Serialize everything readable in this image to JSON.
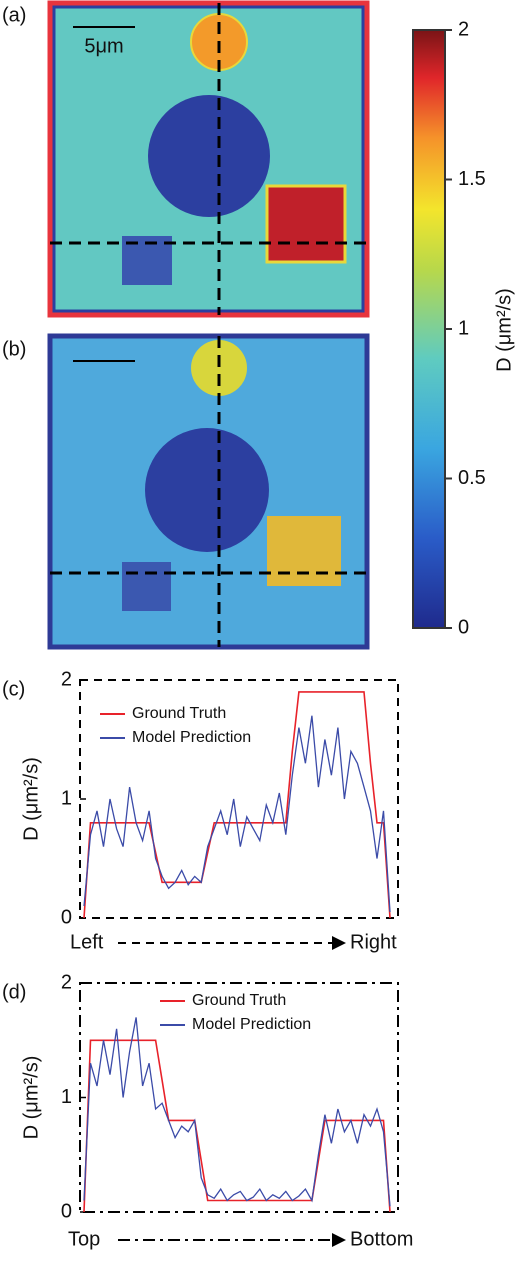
{
  "images": [
    {
      "panel": "(a)",
      "scale_bar": "5μm"
    },
    {
      "panel": "(b)"
    }
  ],
  "chart_data": [
    {
      "type": "colorbar",
      "label": "D (μm²/s)",
      "ylim": [
        0,
        2
      ],
      "yticks": [
        0,
        0.5,
        1,
        1.5,
        2
      ]
    },
    {
      "type": "line",
      "panel": "(c)",
      "ylabel": "D (μm²/s)",
      "x_start": "Left",
      "x_end": "Right",
      "ylim": [
        0,
        2
      ],
      "yticks": [
        0,
        1,
        2
      ],
      "series": [
        {
          "name": "Ground Truth",
          "color": "#e8222a",
          "values": [
            0,
            0.8,
            0.8,
            0.8,
            0.8,
            0.8,
            0.8,
            0.8,
            0.8,
            0.8,
            0.8,
            0.55,
            0.3,
            0.3,
            0.3,
            0.3,
            0.3,
            0.3,
            0.3,
            0.55,
            0.8,
            0.8,
            0.8,
            0.8,
            0.8,
            0.8,
            0.8,
            0.8,
            0.8,
            0.8,
            0.8,
            0.8,
            1.4,
            1.9,
            1.9,
            1.9,
            1.9,
            1.9,
            1.9,
            1.9,
            1.9,
            1.9,
            1.9,
            1.9,
            1.3,
            0.8,
            0.8,
            0
          ]
        },
        {
          "name": "Model Prediction",
          "color": "#3b4ba8",
          "values": [
            0.1,
            0.7,
            0.9,
            0.6,
            1.0,
            0.75,
            0.6,
            1.1,
            0.8,
            0.65,
            0.9,
            0.5,
            0.35,
            0.25,
            0.3,
            0.4,
            0.28,
            0.35,
            0.3,
            0.6,
            0.75,
            0.9,
            0.7,
            1.0,
            0.6,
            0.85,
            0.75,
            0.65,
            0.95,
            0.8,
            1.05,
            0.7,
            1.2,
            1.6,
            1.3,
            1.7,
            1.1,
            1.5,
            1.2,
            1.6,
            1.0,
            1.4,
            1.3,
            1.1,
            0.9,
            0.5,
            0.9,
            0.05
          ]
        }
      ]
    },
    {
      "type": "line",
      "panel": "(d)",
      "ylabel": "D (μm²/s)",
      "x_start": "Top",
      "x_end": "Bottom",
      "ylim": [
        0,
        2
      ],
      "yticks": [
        0,
        1,
        2
      ],
      "series": [
        {
          "name": "Ground Truth",
          "color": "#e8222a",
          "values": [
            0,
            1.5,
            1.5,
            1.5,
            1.5,
            1.5,
            1.5,
            1.5,
            1.5,
            1.5,
            1.5,
            1.5,
            1.15,
            0.8,
            0.8,
            0.8,
            0.8,
            0.8,
            0.45,
            0.1,
            0.1,
            0.1,
            0.1,
            0.1,
            0.1,
            0.1,
            0.1,
            0.1,
            0.1,
            0.1,
            0.1,
            0.1,
            0.1,
            0.1,
            0.1,
            0.1,
            0.45,
            0.8,
            0.8,
            0.8,
            0.8,
            0.8,
            0.8,
            0.8,
            0.8,
            0.8,
            0.8,
            0
          ]
        },
        {
          "name": "Model Prediction",
          "color": "#3b4ba8",
          "values": [
            0.1,
            1.3,
            1.1,
            1.5,
            1.2,
            1.6,
            1.0,
            1.4,
            1.7,
            1.1,
            1.3,
            0.9,
            0.95,
            0.8,
            0.65,
            0.75,
            0.7,
            0.8,
            0.3,
            0.15,
            0.12,
            0.2,
            0.1,
            0.15,
            0.18,
            0.1,
            0.13,
            0.2,
            0.1,
            0.15,
            0.12,
            0.18,
            0.1,
            0.14,
            0.2,
            0.1,
            0.5,
            0.85,
            0.6,
            0.9,
            0.7,
            0.8,
            0.6,
            0.85,
            0.75,
            0.9,
            0.7,
            0.05
          ]
        }
      ]
    }
  ]
}
